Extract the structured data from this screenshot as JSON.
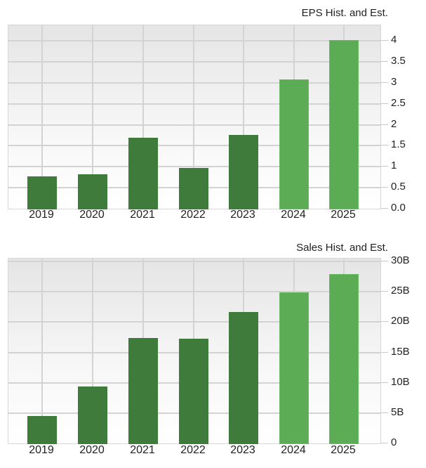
{
  "chart_data": [
    {
      "type": "bar",
      "title": "EPS Hist. and Est.",
      "categories": [
        "2019",
        "2020",
        "2021",
        "2022",
        "2023",
        "2024",
        "2025"
      ],
      "values": [
        0.78,
        0.84,
        1.7,
        0.98,
        1.78,
        3.1,
        4.03
      ],
      "series_kind": [
        "historical",
        "historical",
        "historical",
        "historical",
        "historical",
        "estimate",
        "estimate"
      ],
      "xlabel": "",
      "ylabel": "",
      "ylim": [
        0,
        4.3
      ],
      "yticks": [
        0,
        0.5,
        1,
        1.5,
        2,
        2.5,
        3,
        3.5,
        4
      ],
      "ytick_labels": [
        "0.0",
        "0.5",
        "1",
        "1.5",
        "2",
        "2.5",
        "3",
        "3.5",
        "4"
      ],
      "y_axis_position": "right",
      "grid": true,
      "colors": {
        "historical": "#3f7b3a",
        "estimate": "#5cab55"
      }
    },
    {
      "type": "bar",
      "title": "Sales Hist. and Est.",
      "categories": [
        "2019",
        "2020",
        "2021",
        "2022",
        "2023",
        "2024",
        "2025"
      ],
      "values": [
        4.6,
        9.5,
        17.5,
        17.4,
        21.8,
        25.0,
        28.0
      ],
      "unit": "B",
      "series_kind": [
        "historical",
        "historical",
        "historical",
        "historical",
        "historical",
        "estimate",
        "estimate"
      ],
      "xlabel": "",
      "ylabel": "",
      "ylim": [
        0,
        30.5
      ],
      "yticks": [
        0,
        5,
        10,
        15,
        20,
        25,
        30
      ],
      "ytick_labels": [
        "0",
        "5B",
        "10B",
        "15B",
        "20B",
        "25B",
        "30B"
      ],
      "y_axis_position": "right",
      "grid": true,
      "colors": {
        "historical": "#3f7b3a",
        "estimate": "#5cab55"
      }
    }
  ]
}
